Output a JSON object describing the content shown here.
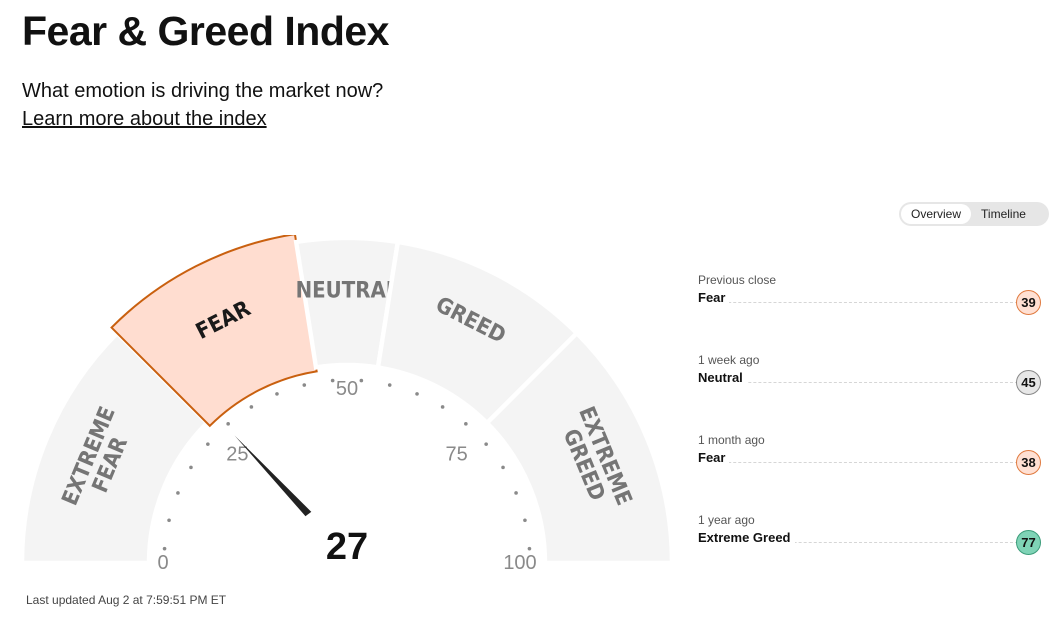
{
  "page": {
    "title": "Fear & Greed Index",
    "subtitle": "What emotion is driving the market now?",
    "learn_more_link": "Learn more about the index",
    "last_updated": "Last updated Aug 2 at 7:59:51 PM ET"
  },
  "view_toggle": {
    "options": [
      "Overview",
      "Timeline"
    ],
    "selected": "Overview"
  },
  "gauge": {
    "value": 27,
    "min": 0,
    "max": 100,
    "scale_labels": [
      "0",
      "25",
      "50",
      "75",
      "100"
    ],
    "zones": [
      {
        "label_lines": [
          "EXTREME",
          "FEAR"
        ],
        "from": 0,
        "to": 25
      },
      {
        "label_lines": [
          "FEAR"
        ],
        "from": 25,
        "to": 45
      },
      {
        "label_lines": [
          "NEUTRAL"
        ],
        "from": 45,
        "to": 55
      },
      {
        "label_lines": [
          "GREED"
        ],
        "from": 55,
        "to": 75
      },
      {
        "label_lines": [
          "EXTREME",
          "GREED"
        ],
        "from": 75,
        "to": 100
      }
    ],
    "active_zone": 1,
    "colors": {
      "zone_fill": "#f4f4f4",
      "active_fill": "#ffddd0",
      "active_stroke": "#c9600f",
      "zone_text": "#757575",
      "active_text": "#1a1a1a",
      "needle": "#222222"
    }
  },
  "history": [
    {
      "period": "Previous close",
      "sentiment": "Fear",
      "value": "39",
      "bg": "#ffe0d3",
      "border": "#e07a3f"
    },
    {
      "period": "1 week ago",
      "sentiment": "Neutral",
      "value": "45",
      "bg": "#e7e7e7",
      "border": "#888888"
    },
    {
      "period": "1 month ago",
      "sentiment": "Fear",
      "value": "38",
      "bg": "#ffe0d3",
      "border": "#e07a3f"
    },
    {
      "period": "1 year ago",
      "sentiment": "Extreme Greed",
      "value": "77",
      "bg": "#7fd3b6",
      "border": "#3b9c7a"
    }
  ]
}
